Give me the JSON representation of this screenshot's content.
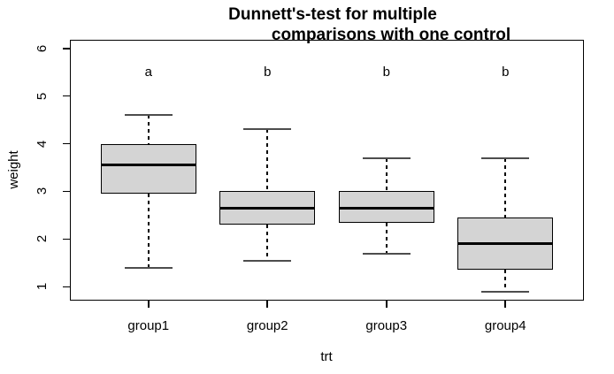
{
  "chart_data": {
    "type": "boxplot",
    "title_line1": "Dunnett's-test for multiple",
    "title_line2": "comparisons with one control",
    "xlabel": "trt",
    "ylabel": "weight",
    "categories": [
      "group1",
      "group2",
      "group3",
      "group4"
    ],
    "positions": [
      1,
      2,
      3,
      4
    ],
    "y_ticks": [
      1,
      2,
      3,
      4,
      5,
      6
    ],
    "ylim": [
      0.71,
      6.18
    ],
    "xlim": [
      0.34,
      4.66
    ],
    "box_width": 0.8,
    "staple_width": 0.4,
    "grid": false,
    "legend": false,
    "sig_letter_y": 5.5,
    "series": [
      {
        "name": "group1",
        "sig_letter": "a",
        "min": 1.4,
        "q1": 2.95,
        "median": 3.55,
        "q3": 4.0,
        "max": 4.6
      },
      {
        "name": "group2",
        "sig_letter": "b",
        "min": 1.55,
        "q1": 2.3,
        "median": 2.65,
        "q3": 3.0,
        "max": 4.3
      },
      {
        "name": "group3",
        "sig_letter": "b",
        "min": 1.7,
        "q1": 2.35,
        "median": 2.65,
        "q3": 3.0,
        "max": 3.7
      },
      {
        "name": "group4",
        "sig_letter": "b",
        "min": 0.9,
        "q1": 1.35,
        "median": 1.9,
        "q3": 2.45,
        "max": 3.7
      }
    ],
    "colors": {
      "background": "#ffffff",
      "text": "#000000",
      "box_fill": "#d4d4d4",
      "box_border": "#000000",
      "median": "#000000",
      "whisker": "#000000",
      "staple": "#4d4d4d",
      "axis": "#000000"
    }
  }
}
